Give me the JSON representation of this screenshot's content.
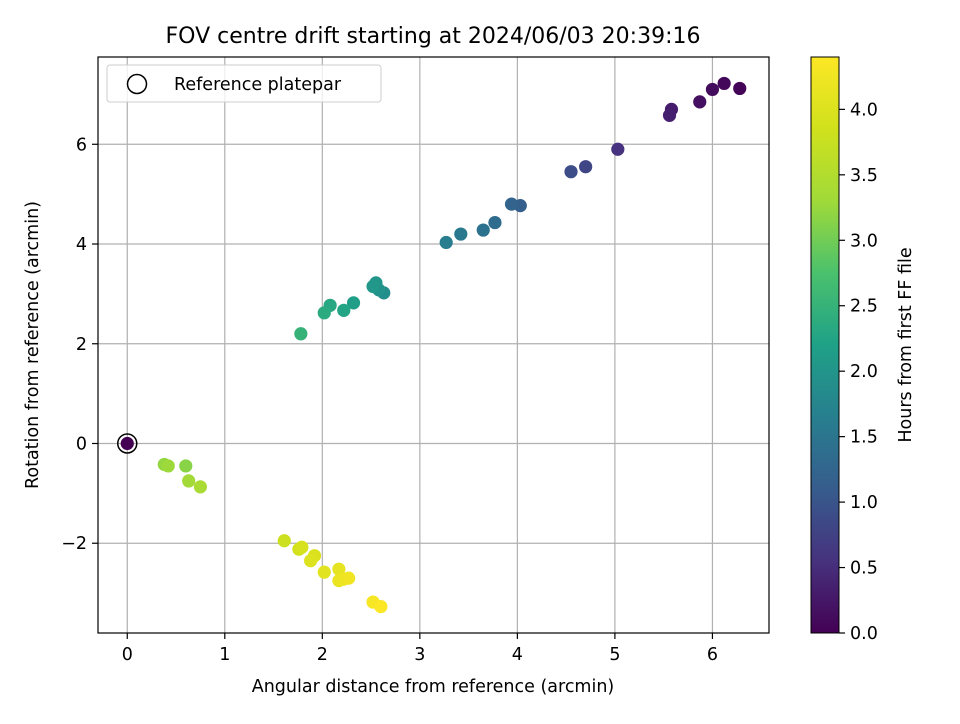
{
  "chart_data": {
    "type": "scatter",
    "title": "FOV centre drift starting at 2024/06/03 20:39:16",
    "xlabel": "Angular distance from reference (arcmin)",
    "ylabel": "Rotation from reference (arcmin)",
    "xlim": [
      -0.3,
      6.58
    ],
    "ylim": [
      -3.8,
      7.75
    ],
    "xticks": [
      0,
      1,
      2,
      3,
      4,
      5,
      6
    ],
    "yticks": [
      -2,
      0,
      2,
      4,
      6
    ],
    "ytick_labels": [
      "−2",
      "0",
      "2",
      "4",
      "6"
    ],
    "grid": true,
    "legend": {
      "position": "top-left",
      "entries": [
        "Reference platepar"
      ]
    },
    "reference_point": {
      "x": 0,
      "y": 0
    },
    "colorbar": {
      "label": "Hours from first FF file",
      "colormap": "viridis",
      "range": [
        0,
        4.4
      ],
      "ticks": [
        0.0,
        0.5,
        1.0,
        1.5,
        2.0,
        2.5,
        3.0,
        3.5,
        4.0
      ],
      "tick_labels": [
        "0.0",
        "0.5",
        "1.0",
        "1.5",
        "2.0",
        "2.5",
        "3.0",
        "3.5",
        "4.0"
      ]
    },
    "points": [
      {
        "x": 0.0,
        "y": 0.0,
        "hours": 0.0
      },
      {
        "x": 6.28,
        "y": 7.12,
        "hours": 0.05
      },
      {
        "x": 6.12,
        "y": 7.22,
        "hours": 0.08
      },
      {
        "x": 6.0,
        "y": 7.1,
        "hours": 0.12
      },
      {
        "x": 5.87,
        "y": 6.85,
        "hours": 0.17
      },
      {
        "x": 5.58,
        "y": 6.7,
        "hours": 0.3
      },
      {
        "x": 5.56,
        "y": 6.58,
        "hours": 0.35
      },
      {
        "x": 5.03,
        "y": 5.9,
        "hours": 0.55
      },
      {
        "x": 4.7,
        "y": 5.55,
        "hours": 0.8
      },
      {
        "x": 4.55,
        "y": 5.45,
        "hours": 0.9
      },
      {
        "x": 4.03,
        "y": 4.77,
        "hours": 1.15
      },
      {
        "x": 3.94,
        "y": 4.8,
        "hours": 1.22
      },
      {
        "x": 3.77,
        "y": 4.43,
        "hours": 1.35
      },
      {
        "x": 3.65,
        "y": 4.28,
        "hours": 1.45
      },
      {
        "x": 3.42,
        "y": 4.2,
        "hours": 1.55
      },
      {
        "x": 3.27,
        "y": 4.03,
        "hours": 1.63
      },
      {
        "x": 2.63,
        "y": 3.02,
        "hours": 1.9
      },
      {
        "x": 2.58,
        "y": 3.08,
        "hours": 1.95
      },
      {
        "x": 2.55,
        "y": 3.22,
        "hours": 2.0
      },
      {
        "x": 2.52,
        "y": 3.15,
        "hours": 2.05
      },
      {
        "x": 2.32,
        "y": 2.82,
        "hours": 2.15
      },
      {
        "x": 2.22,
        "y": 2.67,
        "hours": 2.25
      },
      {
        "x": 2.08,
        "y": 2.77,
        "hours": 2.3
      },
      {
        "x": 2.02,
        "y": 2.62,
        "hours": 2.35
      },
      {
        "x": 1.78,
        "y": 2.2,
        "hours": 2.5
      },
      {
        "x": 0.6,
        "y": -0.45,
        "hours": 3.15
      },
      {
        "x": 0.38,
        "y": -0.42,
        "hours": 3.22
      },
      {
        "x": 0.42,
        "y": -0.45,
        "hours": 3.28
      },
      {
        "x": 0.63,
        "y": -0.75,
        "hours": 3.33
      },
      {
        "x": 0.75,
        "y": -0.87,
        "hours": 3.4
      },
      {
        "x": 1.61,
        "y": -1.95,
        "hours": 3.8
      },
      {
        "x": 1.76,
        "y": -2.12,
        "hours": 3.87
      },
      {
        "x": 1.79,
        "y": -2.08,
        "hours": 3.92
      },
      {
        "x": 1.92,
        "y": -2.25,
        "hours": 3.97
      },
      {
        "x": 1.88,
        "y": -2.35,
        "hours": 4.02
      },
      {
        "x": 2.02,
        "y": -2.58,
        "hours": 4.07
      },
      {
        "x": 2.17,
        "y": -2.52,
        "hours": 4.12
      },
      {
        "x": 2.17,
        "y": -2.75,
        "hours": 4.17
      },
      {
        "x": 2.22,
        "y": -2.72,
        "hours": 4.2
      },
      {
        "x": 2.27,
        "y": -2.7,
        "hours": 4.25
      },
      {
        "x": 2.52,
        "y": -3.18,
        "hours": 4.32
      },
      {
        "x": 2.6,
        "y": -3.27,
        "hours": 4.38
      }
    ]
  }
}
